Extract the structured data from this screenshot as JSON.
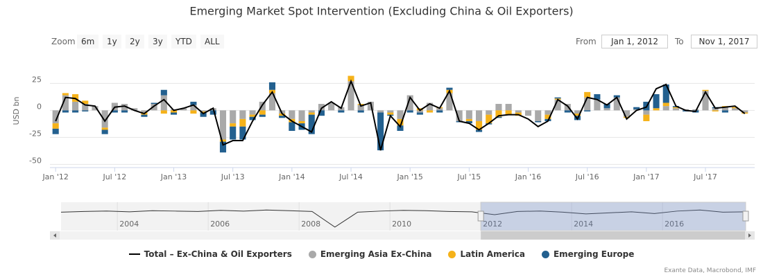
{
  "chart_data": {
    "type": "bar",
    "title": "Emerging Market Spot Intervention (Excluding China & Oil Exporters)",
    "y_label": "USD bn",
    "zoom": {
      "label": "Zoom",
      "buttons": [
        "6m",
        "1y",
        "2y",
        "3y",
        "YTD",
        "ALL"
      ]
    },
    "range": {
      "from_label": "From",
      "from": "Jan 1, 2012",
      "to_label": "To",
      "to": "Nov 1, 2017"
    },
    "credits": "Exante Data, Macrobond, IMF",
    "grid": true,
    "xlim": [
      "2011-12",
      "2017-12"
    ],
    "xticks": [
      {
        "value": "2012-01",
        "label": "Jan '12"
      },
      {
        "value": "2012-07",
        "label": "Jul '12"
      },
      {
        "value": "2013-01",
        "label": "Jan '13"
      },
      {
        "value": "2013-07",
        "label": "Jul '13"
      },
      {
        "value": "2014-01",
        "label": "Jan '14"
      },
      {
        "value": "2014-07",
        "label": "Jul '14"
      },
      {
        "value": "2015-01",
        "label": "Jan '15"
      },
      {
        "value": "2015-07",
        "label": "Jul '15"
      },
      {
        "value": "2016-01",
        "label": "Jan '16"
      },
      {
        "value": "2016-07",
        "label": "Jul '16"
      },
      {
        "value": "2017-01",
        "label": "Jan '17"
      },
      {
        "value": "2017-07",
        "label": "Jul '17"
      }
    ],
    "ylim": [
      -53,
      49
    ],
    "yticks": [
      25,
      0,
      -25,
      -50
    ],
    "x": [
      "2012-01",
      "2012-02",
      "2012-03",
      "2012-04",
      "2012-05",
      "2012-06",
      "2012-07",
      "2012-08",
      "2012-09",
      "2012-10",
      "2012-11",
      "2012-12",
      "2013-01",
      "2013-02",
      "2013-03",
      "2013-04",
      "2013-05",
      "2013-06",
      "2013-07",
      "2013-08",
      "2013-09",
      "2013-10",
      "2013-11",
      "2013-12",
      "2014-01",
      "2014-02",
      "2014-03",
      "2014-04",
      "2014-05",
      "2014-06",
      "2014-07",
      "2014-08",
      "2014-09",
      "2014-10",
      "2014-11",
      "2014-12",
      "2015-01",
      "2015-02",
      "2015-03",
      "2015-04",
      "2015-05",
      "2015-06",
      "2015-07",
      "2015-08",
      "2015-09",
      "2015-10",
      "2015-11",
      "2015-12",
      "2016-01",
      "2016-02",
      "2016-03",
      "2016-04",
      "2016-05",
      "2016-06",
      "2016-07",
      "2016-08",
      "2016-09",
      "2016-10",
      "2016-11",
      "2016-12",
      "2017-01",
      "2017-02",
      "2017-03",
      "2017-04",
      "2017-05",
      "2017-06",
      "2017-07",
      "2017-08",
      "2017-09",
      "2017-10",
      "2017-11"
    ],
    "series": [
      {
        "name": "Total – Ex-China & Oil Exporters",
        "type": "line",
        "color": "#000000",
        "values": [
          -10,
          12,
          11,
          5,
          4,
          -10,
          3,
          4,
          0,
          -3,
          4,
          10,
          0,
          2,
          5,
          -3,
          2,
          -32,
          -28,
          -28,
          -10,
          5,
          17,
          -3,
          -10,
          -15,
          -20,
          2,
          8,
          2,
          27,
          4,
          7,
          -37,
          -5,
          -15,
          12,
          0,
          6,
          2,
          18,
          -10,
          -12,
          -18,
          -12,
          -5,
          -4,
          -4,
          -8,
          -15,
          -10,
          10,
          4,
          -8,
          12,
          10,
          5,
          12,
          -8,
          0,
          3,
          20,
          24,
          4,
          0,
          -1,
          17,
          2,
          3,
          4,
          -3
        ]
      },
      {
        "name": "Emerging Asia Ex-China",
        "type": "bar",
        "color": "#a9a9a9",
        "values": [
          -12,
          14,
          8,
          6,
          4,
          -16,
          7,
          6,
          2,
          -2,
          6,
          14,
          1,
          2,
          5,
          -1,
          2,
          -27,
          -12,
          -8,
          -4,
          8,
          16,
          -3,
          -8,
          -10,
          -2,
          6,
          7,
          3,
          27,
          5,
          8,
          -2,
          -2,
          -8,
          14,
          -2,
          7,
          2,
          16,
          -10,
          -8,
          -10,
          -4,
          6,
          6,
          -2,
          -5,
          -10,
          -4,
          10,
          6,
          -3,
          12,
          10,
          2,
          12,
          -6,
          1,
          -4,
          0,
          4,
          2,
          1,
          1,
          18,
          2,
          3,
          2,
          -2
        ]
      },
      {
        "name": "Latin America",
        "type": "bar",
        "color": "#f5b21a",
        "values": [
          -5,
          2,
          7,
          3,
          0,
          -2,
          0,
          0,
          0,
          -2,
          0,
          -3,
          -2,
          0,
          -3,
          -1,
          0,
          -2,
          -3,
          -7,
          -2,
          -4,
          3,
          -2,
          -3,
          -2,
          -2,
          0,
          0,
          0,
          5,
          1,
          0,
          0,
          -2,
          -6,
          0,
          2,
          -2,
          1,
          3,
          0,
          -2,
          -8,
          -8,
          -6,
          -4,
          -3,
          0,
          0,
          -4,
          1,
          0,
          -2,
          5,
          0,
          0,
          0,
          -1,
          0,
          -6,
          2,
          3,
          1,
          0,
          0,
          1,
          -1,
          1,
          1,
          -1
        ]
      },
      {
        "name": "Emerging Europe",
        "type": "bar",
        "color": "#23608f",
        "values": [
          -5,
          -2,
          -2,
          -1,
          0,
          -4,
          -2,
          -2,
          0,
          -2,
          1,
          5,
          -2,
          0,
          3,
          -4,
          -4,
          -10,
          -12,
          -12,
          -3,
          -2,
          7,
          -2,
          -8,
          -6,
          -18,
          -5,
          0,
          -2,
          0,
          -2,
          0,
          -35,
          -1,
          -5,
          -2,
          -2,
          0,
          -2,
          2,
          -1,
          -2,
          -2,
          -1,
          -1,
          0,
          0,
          0,
          -1,
          -2,
          1,
          -2,
          -4,
          -1,
          5,
          4,
          2,
          0,
          2,
          8,
          13,
          17,
          1,
          -1,
          -2,
          0,
          1,
          -2,
          0,
          0
        ]
      }
    ],
    "navigator": {
      "xlim": [
        2002.76,
        2017.83
      ],
      "xticks": [
        2004,
        2006,
        2008,
        2010,
        2012,
        2014,
        2016
      ],
      "ylim": [
        -50,
        30
      ],
      "selected": [
        2012,
        2017.83
      ],
      "values": [
        2,
        4,
        5,
        3,
        6,
        5,
        4,
        7,
        5,
        8,
        6,
        4,
        -40,
        2,
        5,
        7,
        6,
        4,
        3,
        -5,
        4,
        5,
        2,
        -3,
        0,
        3,
        -2,
        5,
        8,
        2,
        3
      ]
    }
  }
}
